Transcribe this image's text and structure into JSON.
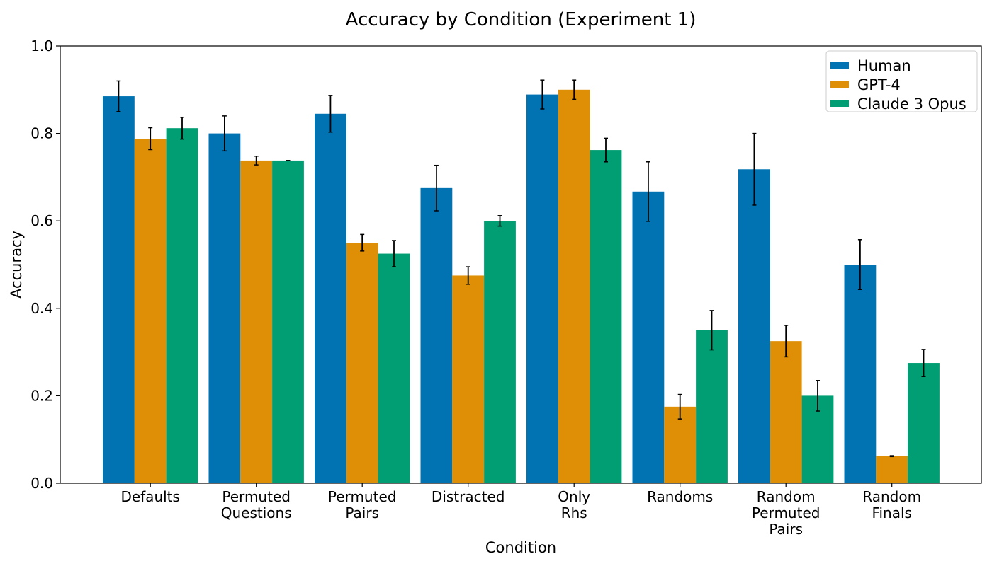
{
  "chart_data": {
    "type": "bar",
    "title": "Accuracy by Condition (Experiment 1)",
    "xlabel": "Condition",
    "ylabel": "Accuracy",
    "ylim": [
      0,
      1.0
    ],
    "yticks": [
      "0.0",
      "0.2",
      "0.4",
      "0.6",
      "0.8",
      "1.0"
    ],
    "ytick_values": [
      0,
      0.2,
      0.4,
      0.6,
      0.8,
      1.0
    ],
    "categories": [
      [
        "Defaults"
      ],
      [
        "Permuted",
        "Questions"
      ],
      [
        "Permuted",
        "Pairs"
      ],
      [
        "Distracted"
      ],
      [
        "Only",
        "Rhs"
      ],
      [
        "Randoms"
      ],
      [
        "Random",
        "Permuted",
        "Pairs"
      ],
      [
        "Random",
        "Finals"
      ]
    ],
    "series": [
      {
        "name": "Human",
        "color": "#0173b2",
        "values": [
          0.885,
          0.8,
          0.845,
          0.675,
          0.889,
          0.667,
          0.718,
          0.5
        ],
        "errors": [
          0.035,
          0.04,
          0.042,
          0.052,
          0.033,
          0.068,
          0.082,
          0.057
        ]
      },
      {
        "name": "GPT-4",
        "color": "#de8f05",
        "values": [
          0.788,
          0.738,
          0.55,
          0.475,
          0.9,
          0.175,
          0.325,
          0.062
        ],
        "errors": [
          0.025,
          0.01,
          0.019,
          0.02,
          0.022,
          0.028,
          0.036,
          0.001
        ]
      },
      {
        "name": "Claude 3 Opus",
        "color": "#029e73",
        "values": [
          0.812,
          0.738,
          0.525,
          0.6,
          0.762,
          0.35,
          0.2,
          0.275
        ],
        "errors": [
          0.025,
          0.0,
          0.03,
          0.012,
          0.027,
          0.045,
          0.035,
          0.031
        ]
      }
    ],
    "legend_position": "top-right",
    "grid": false
  }
}
